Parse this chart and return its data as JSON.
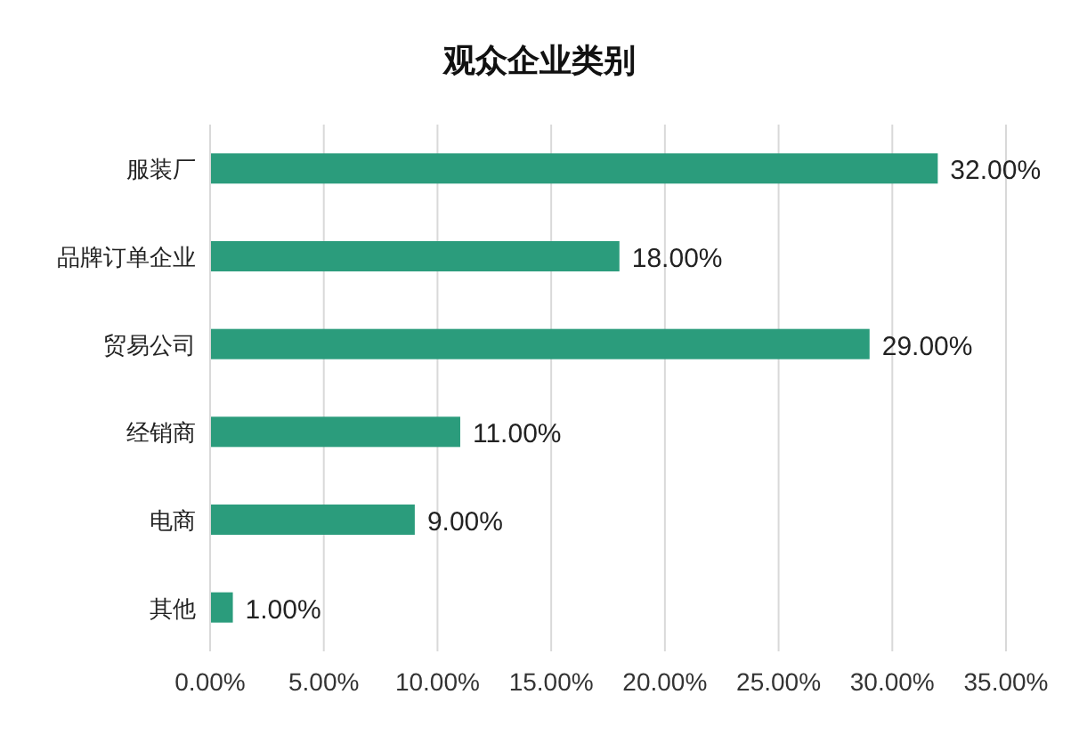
{
  "chart_data": {
    "type": "bar",
    "orientation": "horizontal",
    "title": "观众企业类别",
    "categories": [
      "服装厂",
      "品牌订单企业",
      "贸易公司",
      "经销商",
      "电商",
      "其他"
    ],
    "values": [
      32,
      18,
      29,
      11,
      9,
      1
    ],
    "value_labels": [
      "32.00%",
      "18.00%",
      "29.00%",
      "11.00%",
      "9.00%",
      "1.00%"
    ],
    "color": "#2b9c7c",
    "xlim": [
      0,
      35
    ],
    "xticks": [
      {
        "value": 0,
        "label": "0.00%"
      },
      {
        "value": 5,
        "label": "5.00%"
      },
      {
        "value": 10,
        "label": "10.00%"
      },
      {
        "value": 15,
        "label": "15.00%"
      },
      {
        "value": 20,
        "label": "20.00%"
      },
      {
        "value": 25,
        "label": "25.00%"
      },
      {
        "value": 30,
        "label": "30.00%"
      },
      {
        "value": 35,
        "label": "35.00%"
      }
    ],
    "grid": "x"
  }
}
